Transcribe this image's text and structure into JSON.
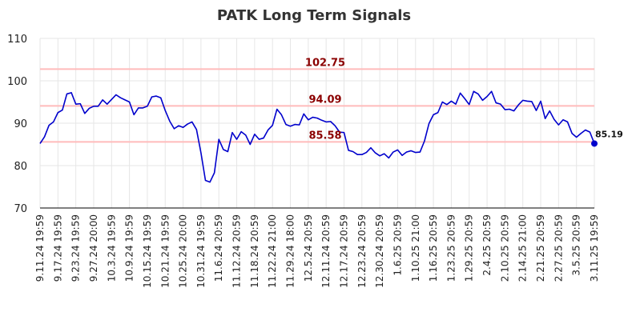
{
  "chart_data": {
    "type": "line",
    "title": "PATK Long Term Signals",
    "xlabel": "",
    "ylabel": "",
    "ylim": [
      70,
      110
    ],
    "yticks": [
      70,
      80,
      90,
      100,
      110
    ],
    "grid": true,
    "colors": {
      "line": "#0000cc",
      "ref_line": "#ffbbbb",
      "ref_label": "#8b0000",
      "grid": "#e6e6e6",
      "last_point": "#0000cc"
    },
    "x_tick_labels": [
      "9.11.24 19:59",
      "9.17.24 19:59",
      "9.23.24 19:59",
      "9.27.24 20:00",
      "10.3.24 19:59",
      "10.9.24 19:59",
      "10.15.24 19:59",
      "10.21.24 19:59",
      "10.25.24 20:00",
      "10.31.24 19:59",
      "11.6.24 20:59",
      "11.12.24 20:59",
      "11.18.24 20:59",
      "11.22.24 21:00",
      "11.29.24 18:00",
      "12.5.24 20:59",
      "12.11.24 20:59",
      "12.17.24 20:59",
      "12.23.24 20:59",
      "12.30.24 20:59",
      "1.6.25 20:59",
      "1.10.25 21:00",
      "1.16.25 20:59",
      "1.23.25 20:59",
      "1.29.25 20:59",
      "2.4.25 20:59",
      "2.10.25 20:59",
      "2.14.25 21:00",
      "2.21.25 20:59",
      "2.27.25 20:59",
      "3.5.25 20:59",
      "3.11.25 19:59"
    ],
    "reference_lines": [
      {
        "value": 102.75,
        "label": "102.75"
      },
      {
        "value": 94.09,
        "label": "94.09"
      },
      {
        "value": 85.58,
        "label": "85.58"
      }
    ],
    "last_value": {
      "value": 85.19,
      "label": "85.19"
    },
    "series": [
      {
        "values": [
          85.2,
          86.8,
          89.5,
          90.3,
          92.5,
          93.1,
          96.9,
          97.2,
          94.5,
          94.6,
          92.3,
          93.5,
          94.0,
          94.0,
          95.5,
          94.5,
          95.6,
          96.7,
          96.0,
          95.5,
          95.0,
          92.0,
          93.6,
          93.6,
          94.0,
          96.2,
          96.4,
          96.0,
          93.0,
          90.5,
          88.7,
          89.4,
          89.0,
          89.8,
          90.3,
          88.5,
          83.0,
          76.5,
          76.1,
          78.3,
          86.2,
          83.8,
          83.3,
          87.8,
          86.2,
          88.0,
          87.2,
          85.0,
          87.4,
          86.2,
          86.5,
          88.4,
          89.5,
          93.3,
          92.0,
          89.7,
          89.3,
          89.7,
          89.6,
          92.2,
          90.8,
          91.4,
          91.2,
          90.7,
          90.3,
          90.4,
          89.4,
          87.9,
          87.8,
          83.6,
          83.3,
          82.6,
          82.6,
          83.1,
          84.2,
          83.0,
          82.3,
          82.8,
          81.8,
          83.2,
          83.7,
          82.4,
          83.2,
          83.5,
          83.1,
          83.2,
          85.8,
          89.9,
          92.0,
          92.5,
          95.0,
          94.4,
          95.2,
          94.5,
          97.1,
          95.8,
          94.4,
          97.5,
          96.9,
          95.4,
          96.3,
          97.5,
          94.8,
          94.5,
          93.2,
          93.3,
          92.9,
          94.3,
          95.4,
          95.2,
          95.1,
          93.0,
          95.2,
          91.1,
          92.9,
          90.9,
          89.6,
          90.8,
          90.3,
          87.6,
          86.7,
          87.6,
          88.4,
          87.9,
          85.2
        ]
      }
    ]
  }
}
